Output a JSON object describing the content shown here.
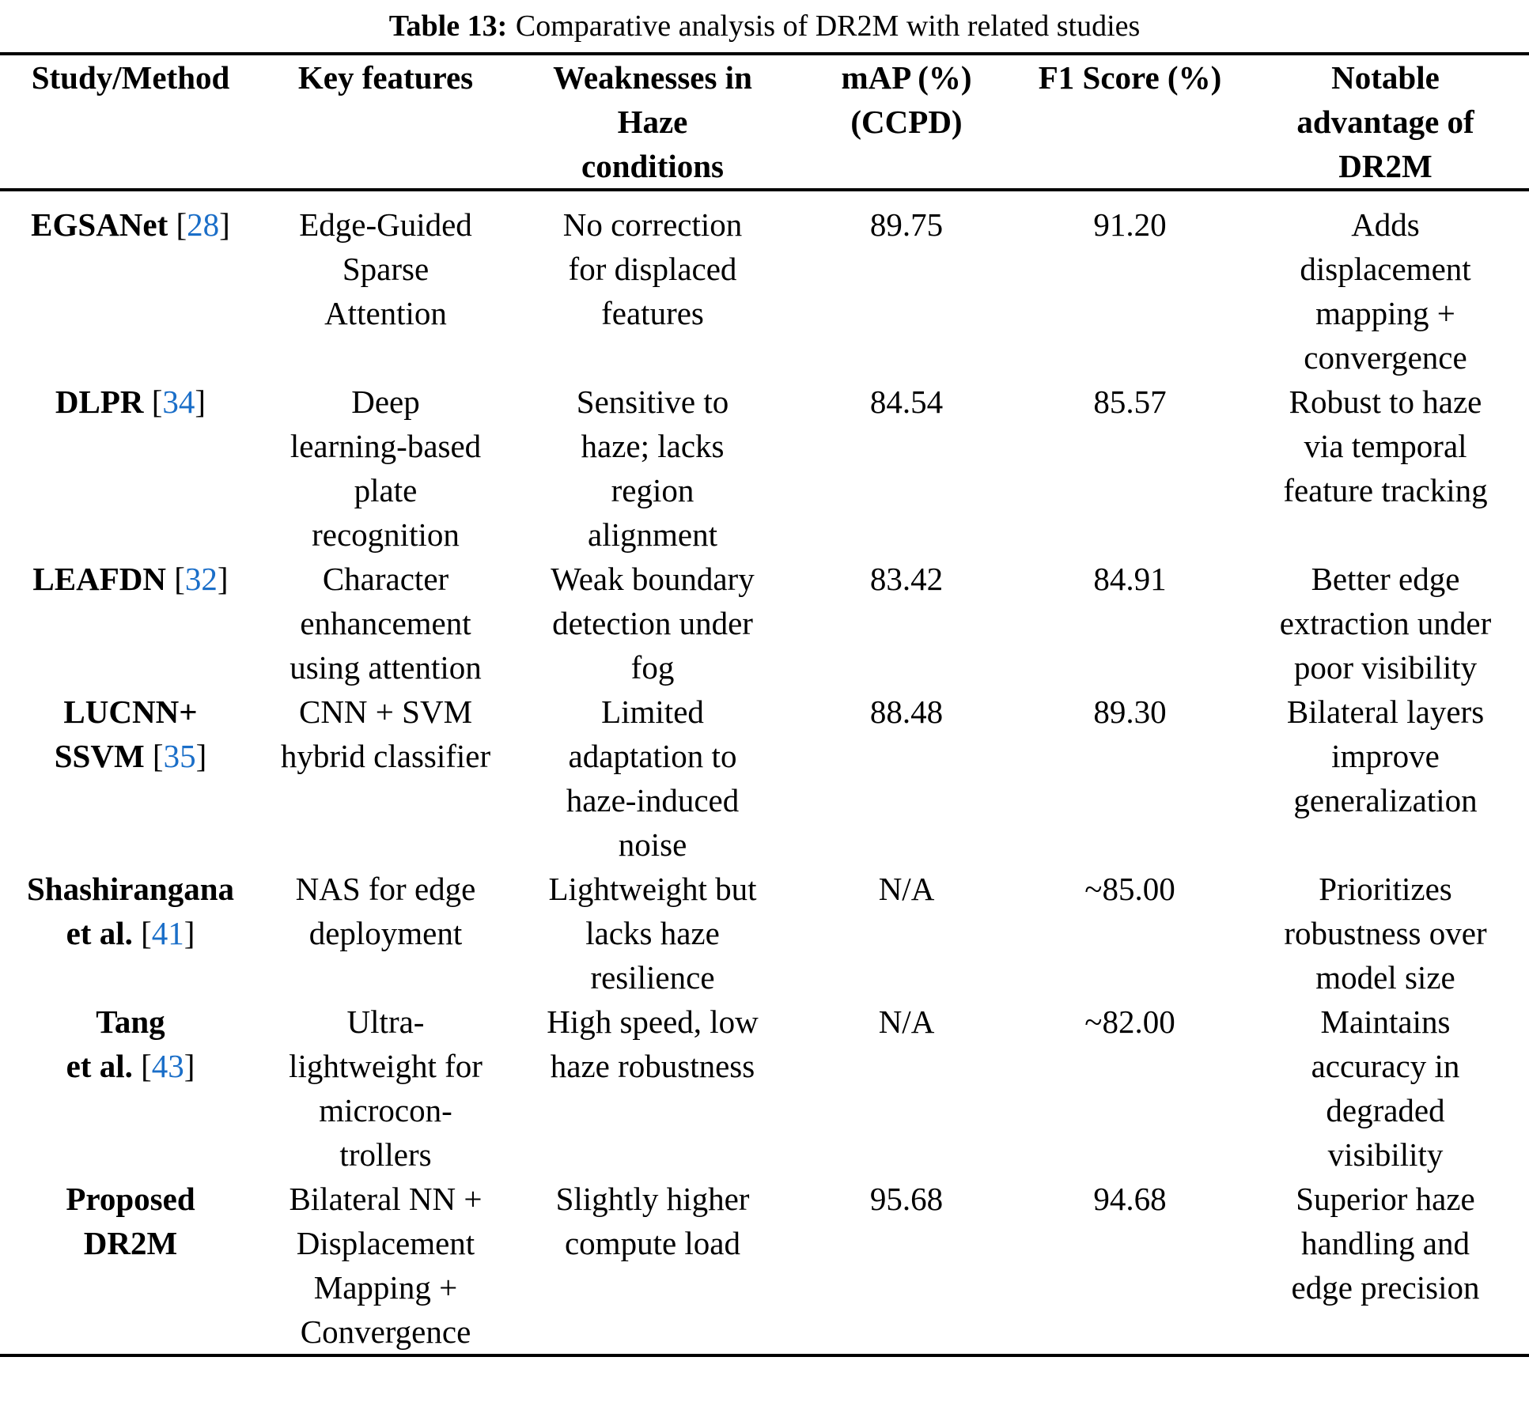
{
  "caption": {
    "label": "Table 13:",
    "text": "Comparative analysis of DR2M with related studies"
  },
  "columns": [
    "Study/Method",
    "Key features",
    "Weaknesses in\nHaze\nconditions",
    "mAP (%)\n(CCPD)",
    "F1 Score (%)",
    "Notable\nadvantage of\nDR2M"
  ],
  "colors": {
    "citation_blue": "#1a6ec8",
    "text": "#000000",
    "rule": "#000000"
  },
  "rows": [
    {
      "study_lines": [
        {
          "text": "EGSANet",
          "bold": true,
          "cite": "28"
        }
      ],
      "key_features": "Edge-Guided\nSparse\nAttention",
      "weaknesses": "No correction\nfor displaced\nfeatures",
      "map_ccpd": "89.75",
      "f1_score": "91.20",
      "advantage": "Adds\ndisplacement\nmapping +\nconvergence"
    },
    {
      "study_lines": [
        {
          "text": "DLPR",
          "bold": true,
          "cite": "34"
        }
      ],
      "key_features": "Deep\nlearning-based\nplate\nrecognition",
      "weaknesses": "Sensitive to\nhaze; lacks\nregion\nalignment",
      "map_ccpd": "84.54",
      "f1_score": "85.57",
      "advantage": "Robust to haze\nvia temporal\nfeature tracking"
    },
    {
      "study_lines": [
        {
          "text": "LEAFDN",
          "bold": true,
          "cite": "32"
        }
      ],
      "key_features": "Character\nenhancement\nusing attention",
      "weaknesses": "Weak boundary\ndetection under\nfog",
      "map_ccpd": "83.42",
      "f1_score": "84.91",
      "advantage": "Better edge\nextraction under\npoor visibility"
    },
    {
      "study_lines": [
        {
          "text": "LUCNN+",
          "bold": true
        },
        {
          "text": "SSVM",
          "bold": true,
          "cite": "35"
        }
      ],
      "key_features": "CNN + SVM\nhybrid classifier",
      "weaknesses": "Limited\nadaptation to\nhaze-induced\nnoise",
      "map_ccpd": "88.48",
      "f1_score": "89.30",
      "advantage": "Bilateral layers\nimprove\ngeneralization"
    },
    {
      "study_lines": [
        {
          "text": "Shashirangana",
          "bold": true
        },
        {
          "text": "et al.",
          "bold": true,
          "cite": "41"
        }
      ],
      "key_features": "NAS for edge\ndeployment",
      "weaknesses": "Lightweight but\nlacks haze\nresilience",
      "map_ccpd": "N/A",
      "f1_score": "~85.00",
      "advantage": "Prioritizes\nrobustness over\nmodel size"
    },
    {
      "study_lines": [
        {
          "text": "Tang",
          "bold": true
        },
        {
          "text": "et al.",
          "bold": true,
          "cite": "43"
        }
      ],
      "key_features": "Ultra-\nlightweight for\nmicrocon-\ntrollers",
      "weaknesses": "High speed, low\nhaze robustness",
      "map_ccpd": "N/A",
      "f1_score": "~82.00",
      "advantage": "Maintains\naccuracy in\ndegraded\nvisibility"
    },
    {
      "study_lines": [
        {
          "text": "Proposed",
          "bold": true
        },
        {
          "text": "DR2M",
          "bold": true
        }
      ],
      "key_features": "Bilateral NN +\nDisplacement\nMapping +\nConvergence",
      "weaknesses": "Slightly higher\ncompute load",
      "map_ccpd": "95.68",
      "f1_score": "94.68",
      "advantage": "Superior haze\nhandling and\nedge precision"
    }
  ]
}
